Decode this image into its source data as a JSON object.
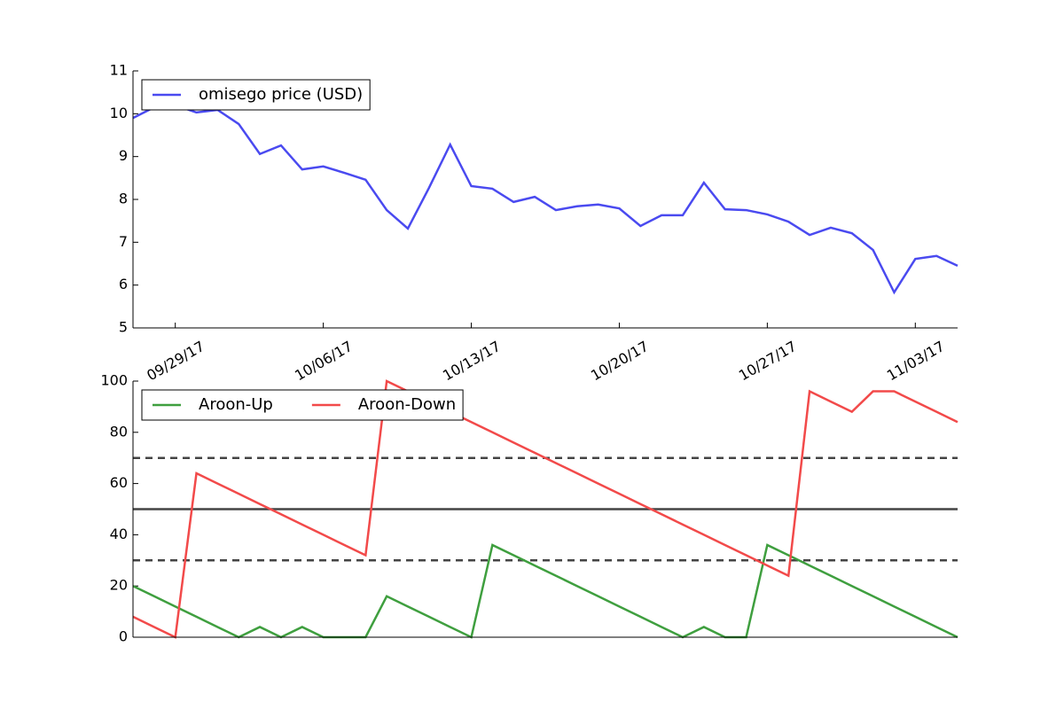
{
  "chart_data": [
    {
      "type": "line",
      "x": [
        "09/27/17",
        "09/28/17",
        "09/29/17",
        "09/30/17",
        "10/01/17",
        "10/02/17",
        "10/03/17",
        "10/04/17",
        "10/05/17",
        "10/06/17",
        "10/07/17",
        "10/08/17",
        "10/09/17",
        "10/10/17",
        "10/11/17",
        "10/12/17",
        "10/13/17",
        "10/14/17",
        "10/15/17",
        "10/16/17",
        "10/17/17",
        "10/18/17",
        "10/19/17",
        "10/20/17",
        "10/21/17",
        "10/22/17",
        "10/23/17",
        "10/24/17",
        "10/25/17",
        "10/26/17",
        "10/27/17",
        "10/28/17",
        "10/29/17",
        "10/30/17",
        "10/31/17",
        "11/01/17",
        "11/02/17",
        "11/03/17",
        "11/04/17",
        "11/05/17"
      ],
      "xlim": [
        "09/27/17",
        "11/05/17"
      ],
      "xticks": [
        "09/29/17",
        "10/06/17",
        "10/13/17",
        "10/20/17",
        "10/27/17",
        "11/03/17"
      ],
      "ylim": [
        5,
        11
      ],
      "yticks": [
        5,
        6,
        7,
        8,
        9,
        10,
        11
      ],
      "legend": "upper left",
      "legend_columns": 1,
      "series": [
        {
          "name": "omisego price (USD)",
          "color": "#4a4af0",
          "values": [
            9.9,
            10.15,
            10.2,
            10.03,
            10.09,
            9.76,
            9.06,
            9.26,
            8.7,
            8.77,
            8.62,
            8.46,
            7.75,
            7.32,
            8.27,
            9.28,
            8.31,
            8.25,
            7.94,
            8.06,
            7.75,
            7.84,
            7.88,
            7.79,
            7.38,
            7.63,
            7.63,
            8.39,
            7.77,
            7.75,
            7.65,
            7.48,
            7.17,
            7.34,
            7.21,
            6.82,
            5.83,
            6.61,
            6.68,
            6.45
          ]
        }
      ]
    },
    {
      "type": "line",
      "x": [
        "09/27/17",
        "09/28/17",
        "09/29/17",
        "09/30/17",
        "10/01/17",
        "10/02/17",
        "10/03/17",
        "10/04/17",
        "10/05/17",
        "10/06/17",
        "10/07/17",
        "10/08/17",
        "10/09/17",
        "10/10/17",
        "10/11/17",
        "10/12/17",
        "10/13/17",
        "10/14/17",
        "10/15/17",
        "10/16/17",
        "10/17/17",
        "10/18/17",
        "10/19/17",
        "10/20/17",
        "10/21/17",
        "10/22/17",
        "10/23/17",
        "10/24/17",
        "10/25/17",
        "10/26/17",
        "10/27/17",
        "10/28/17",
        "10/29/17",
        "10/30/17",
        "10/31/17",
        "11/01/17",
        "11/02/17",
        "11/03/17",
        "11/04/17",
        "11/05/17"
      ],
      "xlim": [
        "09/27/17",
        "11/05/17"
      ],
      "ylim": [
        0,
        100
      ],
      "yticks": [
        0,
        20,
        40,
        60,
        80,
        100
      ],
      "legend": "upper left",
      "legend_columns": 2,
      "hlines": [
        {
          "value": 30,
          "style": "dashed",
          "color": "#444444"
        },
        {
          "value": 50,
          "style": "solid",
          "color": "#444444"
        },
        {
          "value": 70,
          "style": "dashed",
          "color": "#444444"
        }
      ],
      "series": [
        {
          "name": "Aroon-Up",
          "color": "#3f9f3f",
          "values": [
            20,
            16,
            12,
            8,
            4,
            0,
            4,
            0,
            4,
            0,
            0,
            0,
            16,
            12,
            8,
            4,
            0,
            36,
            32,
            28,
            24,
            20,
            16,
            12,
            8,
            4,
            0,
            4,
            0,
            0,
            36,
            32,
            28,
            24,
            20,
            16,
            12,
            8,
            4,
            0
          ]
        },
        {
          "name": "Aroon-Down",
          "color": "#f24a4a",
          "values": [
            8,
            4,
            0,
            64,
            60,
            56,
            52,
            48,
            44,
            40,
            36,
            32,
            100,
            96,
            92,
            88,
            84,
            80,
            76,
            72,
            68,
            64,
            60,
            56,
            52,
            48,
            44,
            40,
            36,
            32,
            28,
            24,
            96,
            92,
            88,
            96,
            96,
            92,
            88,
            84
          ]
        }
      ]
    }
  ]
}
